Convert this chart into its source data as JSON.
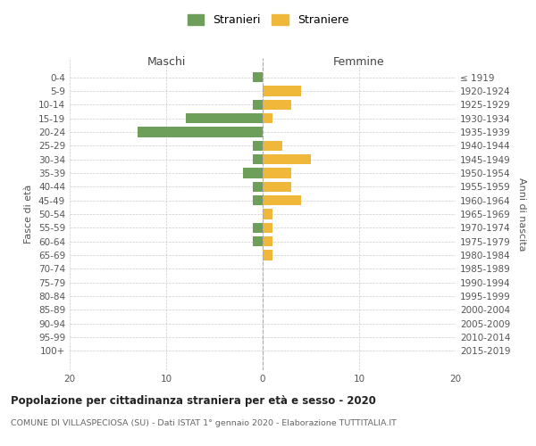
{
  "age_groups": [
    "0-4",
    "5-9",
    "10-14",
    "15-19",
    "20-24",
    "25-29",
    "30-34",
    "35-39",
    "40-44",
    "45-49",
    "50-54",
    "55-59",
    "60-64",
    "65-69",
    "70-74",
    "75-79",
    "80-84",
    "85-89",
    "90-94",
    "95-99",
    "100+"
  ],
  "birth_years": [
    "2015-2019",
    "2010-2014",
    "2005-2009",
    "2000-2004",
    "1995-1999",
    "1990-1994",
    "1985-1989",
    "1980-1984",
    "1975-1979",
    "1970-1974",
    "1965-1969",
    "1960-1964",
    "1955-1959",
    "1950-1954",
    "1945-1949",
    "1940-1944",
    "1935-1939",
    "1930-1934",
    "1925-1929",
    "1920-1924",
    "≤ 1919"
  ],
  "maschi": [
    1,
    0,
    1,
    8,
    13,
    1,
    1,
    2,
    1,
    1,
    0,
    1,
    1,
    0,
    0,
    0,
    0,
    0,
    0,
    0,
    0
  ],
  "femmine": [
    0,
    4,
    3,
    1,
    0,
    2,
    5,
    3,
    3,
    4,
    1,
    1,
    1,
    1,
    0,
    0,
    0,
    0,
    0,
    0,
    0
  ],
  "color_maschi": "#6d9e5a",
  "color_femmine": "#f0b83a",
  "title": "Popolazione per cittadinanza straniera per età e sesso - 2020",
  "subtitle": "COMUNE DI VILLASPECIOSA (SU) - Dati ISTAT 1° gennaio 2020 - Elaborazione TUTTITALIA.IT",
  "ylabel_left": "Fasce di età",
  "ylabel_right": "Anni di nascita",
  "xlabel_maschi": "Maschi",
  "xlabel_femmine": "Femmine",
  "legend_maschi": "Stranieri",
  "legend_femmine": "Straniere",
  "xlim": 20,
  "background_color": "#ffffff",
  "grid_color": "#cccccc"
}
